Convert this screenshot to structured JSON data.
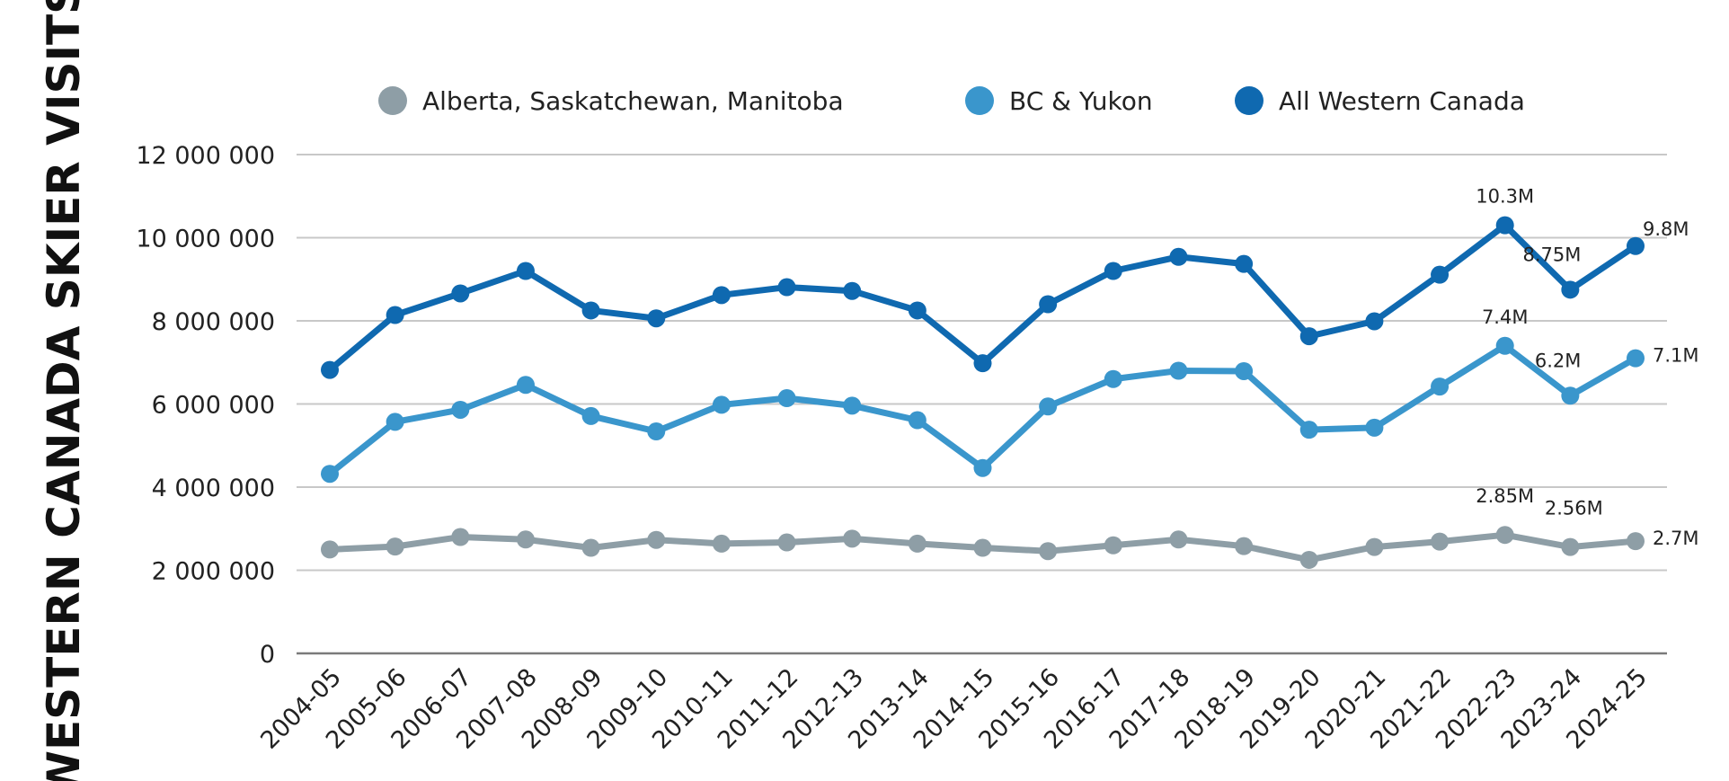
{
  "chart_data": {
    "type": "line",
    "title": "",
    "ylabel": "WESTERN CANADA SKIER VISITS",
    "xlabel": "",
    "ylim": [
      0,
      12000000
    ],
    "yticks": [
      0,
      2000000,
      4000000,
      6000000,
      8000000,
      10000000,
      12000000
    ],
    "ytick_labels": [
      "0",
      "2 000 000",
      "4 000 000",
      "6 000 000",
      "8 000 000",
      "10 000 000",
      "12 000 000"
    ],
    "grid": "horizontal",
    "legend_position": "top",
    "categories": [
      "2004-05",
      "2005-06",
      "2006-07",
      "2007-08",
      "2008-09",
      "2009-10",
      "2010-11",
      "2011-12",
      "2012-13",
      "2013-14",
      "2014-15",
      "2015-16",
      "2016-17",
      "2017-18",
      "2018-19",
      "2019-20",
      "2020-21",
      "2021-22",
      "2022-23",
      "2023-24",
      "2024-25"
    ],
    "series": [
      {
        "name": "Alberta, Saskatchewan, Manitoba",
        "color": "#8e9ea6",
        "values": [
          2500000,
          2570000,
          2800000,
          2740000,
          2540000,
          2730000,
          2640000,
          2670000,
          2760000,
          2640000,
          2540000,
          2460000,
          2600000,
          2740000,
          2580000,
          2250000,
          2560000,
          2690000,
          2850000,
          2560000,
          2700000
        ]
      },
      {
        "name": "BC & Yukon",
        "color": "#3a96cc",
        "values": [
          4320000,
          5570000,
          5860000,
          6460000,
          5710000,
          5340000,
          5980000,
          6140000,
          5960000,
          5610000,
          4460000,
          5940000,
          6600000,
          6800000,
          6790000,
          5380000,
          5430000,
          6420000,
          7400000,
          6200000,
          7100000
        ]
      },
      {
        "name": "All Western Canada",
        "color": "#0f69b0",
        "values": [
          6820000,
          8140000,
          8660000,
          9200000,
          8250000,
          8060000,
          8620000,
          8810000,
          8720000,
          8250000,
          6980000,
          8400000,
          9200000,
          9540000,
          9370000,
          7630000,
          7990000,
          9110000,
          10300000,
          8750000,
          9800000
        ]
      }
    ],
    "annotations": [
      {
        "series": 2,
        "index": 18,
        "text": "10.3M",
        "place": "above"
      },
      {
        "series": 2,
        "index": 19,
        "text": "8.75M",
        "place": "above"
      },
      {
        "series": 2,
        "index": 20,
        "text": "9.8M",
        "place": "above-right"
      },
      {
        "series": 1,
        "index": 18,
        "text": "7.4M",
        "place": "above"
      },
      {
        "series": 1,
        "index": 19,
        "text": "6.2M",
        "place": "above"
      },
      {
        "series": 1,
        "index": 20,
        "text": "7.1M",
        "place": "right"
      },
      {
        "series": 0,
        "index": 18,
        "text": "2.85M",
        "place": "above-far"
      },
      {
        "series": 0,
        "index": 19,
        "text": "2.56M",
        "place": "above-far"
      },
      {
        "series": 0,
        "index": 20,
        "text": "2.7M",
        "place": "right"
      }
    ]
  }
}
